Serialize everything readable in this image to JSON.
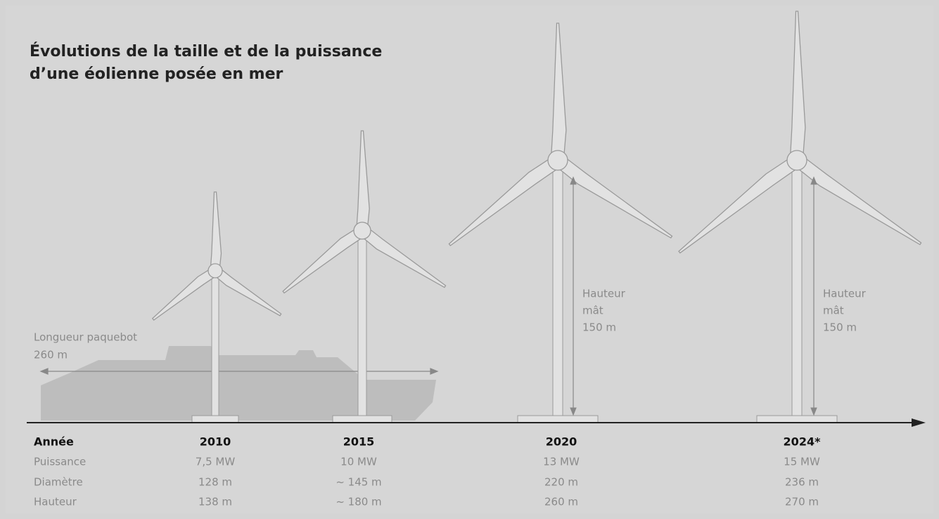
{
  "title_lines": [
    "Évolutions de la taille et de la puissance",
    "d’une éolienne posée en mer"
  ],
  "ship": {
    "label_lines": [
      "Longueur paquebot",
      "260 m"
    ]
  },
  "row_labels": [
    "Année",
    "Puissance",
    "Diamètre",
    "Hauteur"
  ],
  "turbines": [
    {
      "year": "2010",
      "power": "7,5 MW",
      "diameter": "128 m",
      "height": "138 m"
    },
    {
      "year": "2015",
      "power": "10 MW",
      "diameter": "~ 145 m",
      "height": "~ 180 m"
    },
    {
      "year": "2020",
      "power": "13 MW",
      "diameter": "220 m",
      "height": "260 m"
    },
    {
      "year": "2024*",
      "power": "15 MW",
      "diameter": "236 m",
      "height": "270 m"
    }
  ],
  "mast_labels": [
    {
      "lines": [
        "Hauteur",
        "mât",
        "150 m"
      ]
    },
    {
      "lines": [
        "Hauteur",
        "mât",
        "150 m"
      ]
    }
  ]
}
